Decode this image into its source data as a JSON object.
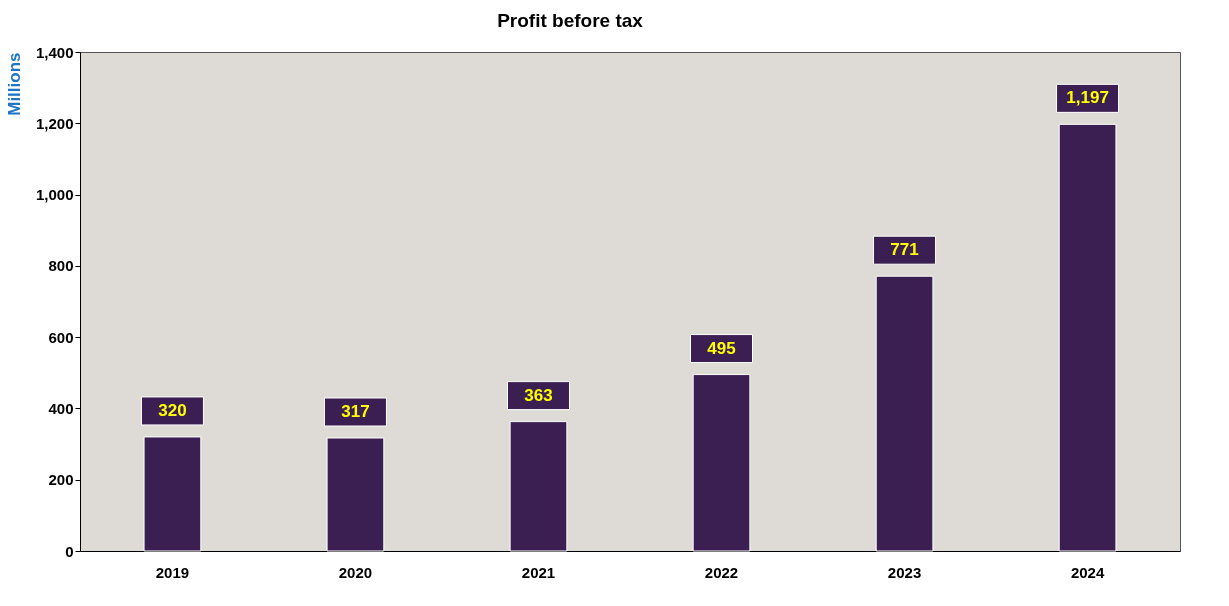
{
  "chart_data": {
    "type": "bar",
    "title": "Profit before tax",
    "ylabel": "Millions",
    "categories": [
      "2019",
      "2020",
      "2021",
      "2022",
      "2023",
      "2024"
    ],
    "values": [
      320,
      317,
      363,
      495,
      771,
      1197
    ],
    "value_labels": [
      "320",
      "317",
      "363",
      "495",
      "771",
      "1,197"
    ],
    "color": "#3b1f52",
    "ylim": [
      0,
      1400
    ],
    "yticks": [
      0,
      200,
      400,
      600,
      800,
      {
        "value": 1000,
        "label": "1,000"
      },
      {
        "value": 1200,
        "label": "1,200"
      },
      {
        "value": 1400,
        "label": "1,400"
      }
    ],
    "grid": false
  }
}
